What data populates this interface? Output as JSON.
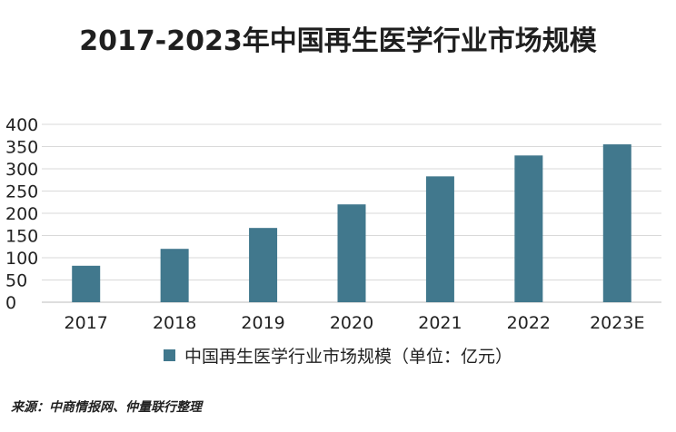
{
  "chart_data": {
    "type": "bar",
    "title": "2017-2023年中国再生医学行业市场规模",
    "categories": [
      "2017",
      "2018",
      "2019",
      "2020",
      "2021",
      "2022",
      "2023E"
    ],
    "series": [
      {
        "name": "中国再生医学行业市场规模（单位：亿元）",
        "values": [
          82,
          120,
          167,
          220,
          283,
          330,
          355
        ]
      }
    ],
    "ylim": [
      0,
      400
    ],
    "yticks": [
      "0",
      "50",
      "100",
      "150",
      "200",
      "250",
      "300",
      "350",
      "400"
    ],
    "xlabel": "",
    "ylabel": "",
    "grid": true,
    "legend": "bottom",
    "bar_color": "#41788d",
    "source": "来源：中商情报网、仲量联行整理"
  }
}
